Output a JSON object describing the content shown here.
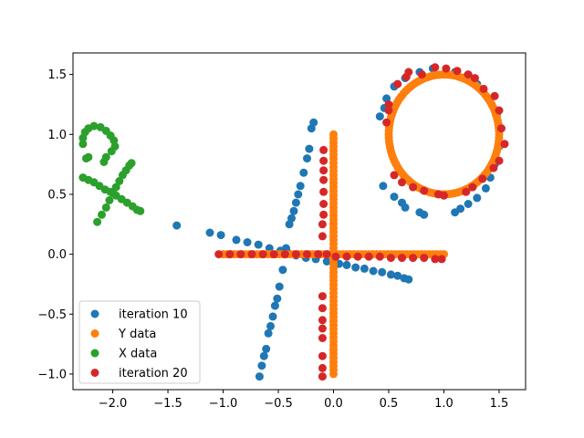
{
  "chart_data": {
    "type": "scatter",
    "title": "",
    "xlabel": "",
    "ylabel": "",
    "xlim": [
      -2.36,
      1.74
    ],
    "ylim": [
      -1.13,
      1.68
    ],
    "grid": false,
    "legend_position": "lower-left",
    "x_ticks": [
      {
        "value": -2.0,
        "label": "−2.0"
      },
      {
        "value": -1.5,
        "label": "−1.5"
      },
      {
        "value": -1.0,
        "label": "−1.0"
      },
      {
        "value": -0.5,
        "label": "−0.5"
      },
      {
        "value": 0.0,
        "label": "0.0"
      },
      {
        "value": 0.5,
        "label": "0.5"
      },
      {
        "value": 1.0,
        "label": "1.0"
      },
      {
        "value": 1.5,
        "label": "1.5"
      }
    ],
    "y_ticks": [
      {
        "value": -1.0,
        "label": "−1.0"
      },
      {
        "value": -0.5,
        "label": "−0.5"
      },
      {
        "value": 0.0,
        "label": "0.0"
      },
      {
        "value": 0.5,
        "label": "0.5"
      },
      {
        "value": 1.0,
        "label": "1.0"
      },
      {
        "value": 1.5,
        "label": "1.5"
      }
    ],
    "series": [
      {
        "name": "iteration 10",
        "color": "#1f77b4",
        "points": [
          [
            -1.42,
            0.24
          ],
          [
            -1.12,
            0.18
          ],
          [
            -1.02,
            0.16
          ],
          [
            -0.88,
            0.12
          ],
          [
            -0.78,
            0.1
          ],
          [
            -0.68,
            0.08
          ],
          [
            -0.58,
            0.05
          ],
          [
            -0.48,
            0.03
          ],
          [
            -0.42,
            0.02
          ],
          [
            -0.34,
            -0.01
          ],
          [
            -0.25,
            -0.03
          ],
          [
            -0.16,
            -0.04
          ],
          [
            -0.06,
            -0.06
          ],
          [
            0.05,
            -0.08
          ],
          [
            0.12,
            -0.09
          ],
          [
            0.2,
            -0.11
          ],
          [
            0.28,
            -0.12
          ],
          [
            0.36,
            -0.14
          ],
          [
            0.44,
            -0.15
          ],
          [
            0.52,
            -0.17
          ],
          [
            0.58,
            -0.18
          ],
          [
            0.64,
            -0.2
          ],
          [
            0.68,
            -0.21
          ],
          [
            -0.18,
            1.1
          ],
          [
            -0.2,
            1.05
          ],
          [
            -0.22,
            0.88
          ],
          [
            -0.24,
            0.8
          ],
          [
            -0.27,
            0.68
          ],
          [
            -0.3,
            0.57
          ],
          [
            -0.32,
            0.5
          ],
          [
            -0.34,
            0.43
          ],
          [
            -0.36,
            0.36
          ],
          [
            -0.38,
            0.3
          ],
          [
            -0.4,
            0.25
          ],
          [
            -0.43,
            0.05
          ],
          [
            -0.46,
            -0.13
          ],
          [
            -0.49,
            -0.27
          ],
          [
            -0.51,
            -0.37
          ],
          [
            -0.53,
            -0.43
          ],
          [
            -0.55,
            -0.52
          ],
          [
            -0.57,
            -0.6
          ],
          [
            -0.59,
            -0.66
          ],
          [
            -0.61,
            -0.79
          ],
          [
            -0.63,
            -0.85
          ],
          [
            -0.65,
            -0.93
          ],
          [
            -0.67,
            -1.02
          ],
          [
            0.45,
            0.57
          ],
          [
            0.42,
            1.15
          ],
          [
            0.46,
            1.22
          ],
          [
            0.48,
            1.3
          ],
          [
            0.55,
            1.4
          ],
          [
            0.65,
            1.47
          ],
          [
            0.78,
            1.52
          ],
          [
            0.9,
            1.55
          ],
          [
            1.0,
            1.5
          ],
          [
            1.1,
            1.52
          ],
          [
            1.2,
            1.48
          ],
          [
            1.3,
            1.42
          ],
          [
            1.4,
            1.3
          ],
          [
            1.48,
            1.17
          ],
          [
            1.52,
            1.05
          ],
          [
            1.5,
            0.9
          ],
          [
            1.46,
            0.75
          ],
          [
            1.42,
            0.64
          ],
          [
            1.38,
            0.55
          ],
          [
            1.3,
            0.47
          ],
          [
            1.22,
            0.42
          ],
          [
            1.15,
            0.38
          ],
          [
            1.1,
            0.35
          ],
          [
            0.82,
            0.33
          ],
          [
            0.78,
            0.35
          ],
          [
            0.65,
            0.39
          ],
          [
            0.62,
            0.43
          ],
          [
            0.55,
            0.48
          ]
        ]
      },
      {
        "name": "Y data",
        "color": "#ff7f0e",
        "segments": [
          {
            "from": [
              -1.0,
              0.0
            ],
            "to": [
              1.0,
              0.0
            ],
            "count": 60
          },
          {
            "from": [
              0.0,
              -1.0
            ],
            "to": [
              0.0,
              1.0
            ],
            "count": 60
          }
        ],
        "circle": {
          "center": [
            1.0,
            1.0
          ],
          "radius": 0.5,
          "count": 110
        }
      },
      {
        "name": "X data",
        "color": "#2ca02c",
        "points": [
          [
            -2.27,
            0.64
          ],
          [
            -2.22,
            0.62
          ],
          [
            -2.17,
            0.6
          ],
          [
            -2.12,
            0.57
          ],
          [
            -2.07,
            0.54
          ],
          [
            -2.02,
            0.52
          ],
          [
            -1.97,
            0.49
          ],
          [
            -1.92,
            0.46
          ],
          [
            -1.87,
            0.43
          ],
          [
            -1.82,
            0.4
          ],
          [
            -1.78,
            0.37
          ],
          [
            -1.75,
            0.36
          ],
          [
            -2.14,
            0.27
          ],
          [
            -2.1,
            0.33
          ],
          [
            -2.06,
            0.39
          ],
          [
            -2.03,
            0.45
          ],
          [
            -2.0,
            0.51
          ],
          [
            -1.97,
            0.56
          ],
          [
            -1.94,
            0.61
          ],
          [
            -1.91,
            0.66
          ],
          [
            -1.88,
            0.7
          ],
          [
            -1.85,
            0.74
          ],
          [
            -1.83,
            0.76
          ],
          [
            -2.27,
            0.92
          ],
          [
            -2.27,
            0.97
          ],
          [
            -2.25,
            1.02
          ],
          [
            -2.22,
            1.05
          ],
          [
            -2.17,
            1.07
          ],
          [
            -2.11,
            1.06
          ],
          [
            -2.06,
            1.03
          ],
          [
            -2.02,
            0.99
          ],
          [
            -1.99,
            0.95
          ],
          [
            -1.98,
            0.9
          ],
          [
            -2.01,
            0.86
          ],
          [
            -2.06,
            0.81
          ],
          [
            -2.24,
            0.8
          ],
          [
            -2.22,
            0.81
          ],
          [
            -2.08,
            0.77
          ]
        ]
      },
      {
        "name": "iteration 20",
        "color": "#d62728",
        "points": [
          [
            -1.04,
            0.0
          ],
          [
            -0.94,
            0.0
          ],
          [
            -0.84,
            0.0
          ],
          [
            -0.74,
            0.0
          ],
          [
            -0.64,
            0.0
          ],
          [
            -0.54,
            0.0
          ],
          [
            -0.44,
            0.0
          ],
          [
            -0.34,
            0.0
          ],
          [
            -0.24,
            0.0
          ],
          [
            -0.14,
            0.0
          ],
          [
            -0.06,
            0.0
          ],
          [
            0.02,
            -0.02
          ],
          [
            0.12,
            -0.02
          ],
          [
            0.22,
            -0.02
          ],
          [
            0.32,
            -0.02
          ],
          [
            0.42,
            -0.02
          ],
          [
            0.52,
            -0.03
          ],
          [
            0.62,
            -0.03
          ],
          [
            0.72,
            -0.03
          ],
          [
            0.82,
            -0.03
          ],
          [
            0.92,
            -0.04
          ],
          [
            0.98,
            -0.04
          ],
          [
            -0.09,
            0.87
          ],
          [
            -0.09,
            0.78
          ],
          [
            -0.09,
            0.7
          ],
          [
            -0.09,
            0.62
          ],
          [
            -0.09,
            0.52
          ],
          [
            -0.09,
            0.42
          ],
          [
            -0.09,
            0.33
          ],
          [
            -0.1,
            0.25
          ],
          [
            -0.1,
            0.15
          ],
          [
            -0.1,
            -0.35
          ],
          [
            -0.1,
            -0.45
          ],
          [
            -0.1,
            -0.55
          ],
          [
            -0.1,
            -0.62
          ],
          [
            -0.1,
            -0.7
          ],
          [
            -0.1,
            -0.85
          ],
          [
            -0.1,
            -0.95
          ],
          [
            -0.1,
            -1.02
          ],
          [
            0.5,
            1.2
          ],
          [
            0.48,
            1.1
          ],
          [
            0.5,
            1.25
          ],
          [
            0.58,
            1.42
          ],
          [
            0.66,
            1.48
          ],
          [
            0.68,
            1.52
          ],
          [
            0.8,
            1.5
          ],
          [
            0.92,
            1.56
          ],
          [
            1.02,
            1.55
          ],
          [
            1.12,
            1.53
          ],
          [
            1.22,
            1.5
          ],
          [
            1.28,
            1.47
          ],
          [
            1.36,
            1.38
          ],
          [
            1.46,
            1.32
          ],
          [
            1.5,
            1.2
          ],
          [
            1.52,
            1.05
          ],
          [
            1.55,
            0.92
          ],
          [
            1.5,
            0.78
          ],
          [
            1.45,
            0.72
          ],
          [
            1.35,
            0.63
          ],
          [
            1.26,
            0.56
          ],
          [
            1.2,
            0.52
          ],
          [
            1.0,
            0.49
          ],
          [
            0.95,
            0.5
          ],
          [
            0.82,
            0.53
          ],
          [
            0.72,
            0.56
          ],
          [
            0.62,
            0.6
          ],
          [
            0.55,
            0.66
          ]
        ]
      }
    ]
  }
}
